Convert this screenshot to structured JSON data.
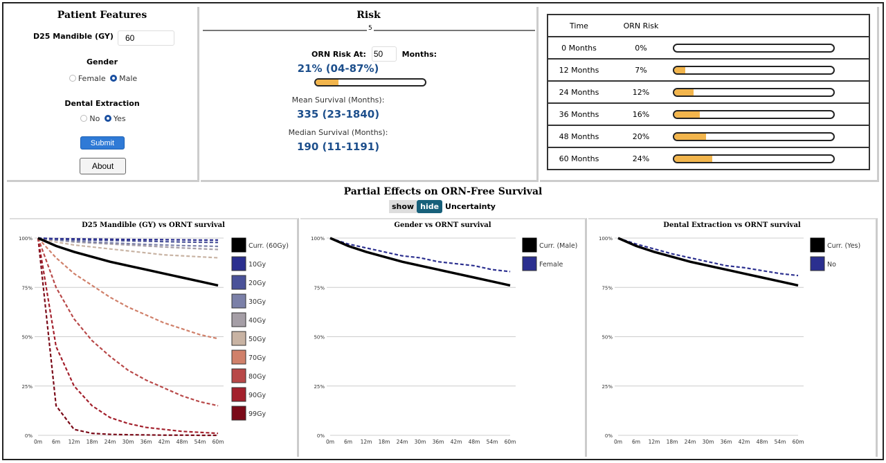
{
  "features": {
    "title": "Patient Features",
    "d25_label": "D25 Mandible (GY)",
    "d25_value": "60",
    "gender_label": "Gender",
    "gender_options": [
      "Female",
      "Male"
    ],
    "gender_selected": "Male",
    "extraction_label": "Dental Extraction",
    "extraction_options": [
      "No",
      "Yes"
    ],
    "extraction_selected": "Yes",
    "submit": "Submit",
    "about": "About"
  },
  "risk": {
    "title": "Risk",
    "slider_value": "5",
    "orn_at_label": "ORN Risk At:",
    "orn_at_value": "50",
    "months_label": "Months:",
    "risk_value": "21% (04-87%)",
    "risk_fraction": 0.21,
    "mean_label": "Mean Survival (Months):",
    "mean_value": "335 (23-1840)",
    "median_label": "Median Survival (Months):",
    "median_value": "190 (11-1191)"
  },
  "risk_table": {
    "headers": [
      "Time",
      "ORN Risk"
    ],
    "rows": [
      {
        "time": "0 Months",
        "risk": "0%",
        "fraction": 0
      },
      {
        "time": "12 Months",
        "risk": "7%",
        "fraction": 0.07
      },
      {
        "time": "24 Months",
        "risk": "12%",
        "fraction": 0.12
      },
      {
        "time": "36 Months",
        "risk": "16%",
        "fraction": 0.16
      },
      {
        "time": "48 Months",
        "risk": "20%",
        "fraction": 0.2
      },
      {
        "time": "60 Months",
        "risk": "24%",
        "fraction": 0.24
      }
    ]
  },
  "partial": {
    "title": "Partial Effects on ORN-Free Survival",
    "show": "show",
    "hide": "hide",
    "active": "hide",
    "uncertainty": "Uncertainty"
  },
  "chart_data": [
    {
      "type": "line",
      "title": "D25 Mandible (GY) vs ORNT survival",
      "x": [
        "0m",
        "6m",
        "12m",
        "18m",
        "24m",
        "30m",
        "36m",
        "42m",
        "48m",
        "54m",
        "60m"
      ],
      "yticks": [
        "0%",
        "25%",
        "50%",
        "75%",
        "100%"
      ],
      "ylim": [
        0,
        100
      ],
      "grid": true,
      "legend": "right",
      "series": [
        {
          "name": "Curr. (60Gy)",
          "color": "#000000",
          "dashed": false,
          "values": [
            100,
            96,
            93,
            90.5,
            88,
            86,
            84,
            82,
            80,
            78,
            76
          ]
        },
        {
          "name": "10Gy",
          "color": "#2b2f8f",
          "dashed": true,
          "values": [
            100,
            99.7,
            99.6,
            99.5,
            99.4,
            99.3,
            99.2,
            99.2,
            99.1,
            99,
            99
          ]
        },
        {
          "name": "20Gy",
          "color": "#4a5299",
          "dashed": true,
          "values": [
            100,
            99.5,
            99.2,
            99,
            98.8,
            98.6,
            98.4,
            98.2,
            98,
            97.9,
            97.8
          ]
        },
        {
          "name": "30Gy",
          "color": "#7b80a8",
          "dashed": true,
          "values": [
            100,
            99,
            98.5,
            98,
            97.6,
            97.2,
            96.8,
            96.5,
            96.2,
            96,
            95.8
          ]
        },
        {
          "name": "40Gy",
          "color": "#a59ea6",
          "dashed": true,
          "values": [
            100,
            99,
            98,
            97.5,
            97,
            96.5,
            96,
            95.5,
            95,
            94.6,
            94.2
          ]
        },
        {
          "name": "50Gy",
          "color": "#c8b3a3",
          "dashed": true,
          "values": [
            100,
            98,
            96.5,
            95.5,
            94.5,
            93.5,
            92.5,
            91.5,
            91,
            90.5,
            90
          ]
        },
        {
          "name": "70Gy",
          "color": "#d0806a",
          "dashed": true,
          "values": [
            100,
            90,
            82,
            76,
            70,
            65,
            61,
            57,
            54,
            51,
            49
          ]
        },
        {
          "name": "80Gy",
          "color": "#b84848",
          "dashed": true,
          "values": [
            100,
            75,
            59,
            48,
            40,
            33,
            28,
            24,
            20,
            17,
            15
          ]
        },
        {
          "name": "90Gy",
          "color": "#a3202c",
          "dashed": true,
          "values": [
            100,
            45,
            25,
            15,
            9,
            6,
            4,
            3,
            2,
            1.5,
            1
          ]
        },
        {
          "name": "99Gy",
          "color": "#7a0a18",
          "dashed": true,
          "values": [
            100,
            15,
            3,
            1,
            0.5,
            0.3,
            0.2,
            0.1,
            0.1,
            0,
            0
          ]
        }
      ]
    },
    {
      "type": "line",
      "title": "Gender vs ORNT survival",
      "x": [
        "0m",
        "6m",
        "12m",
        "18m",
        "24m",
        "30m",
        "36m",
        "42m",
        "48m",
        "54m",
        "60m"
      ],
      "yticks": [
        "0%",
        "25%",
        "50%",
        "75%",
        "100%"
      ],
      "ylim": [
        0,
        100
      ],
      "grid": true,
      "legend": "right",
      "series": [
        {
          "name": "Curr. (Male)",
          "color": "#000000",
          "dashed": false,
          "values": [
            100,
            96,
            93,
            90.5,
            88,
            86,
            84,
            82,
            80,
            78,
            76
          ]
        },
        {
          "name": "Female",
          "color": "#2b2f8f",
          "dashed": true,
          "values": [
            100,
            97,
            95,
            93,
            91,
            90,
            88,
            87,
            86,
            84,
            83
          ]
        }
      ]
    },
    {
      "type": "line",
      "title": "Dental Extraction vs ORNT survival",
      "x": [
        "0m",
        "6m",
        "12m",
        "18m",
        "24m",
        "30m",
        "36m",
        "42m",
        "48m",
        "54m",
        "60m"
      ],
      "yticks": [
        "0%",
        "25%",
        "50%",
        "75%",
        "100%"
      ],
      "ylim": [
        0,
        100
      ],
      "grid": true,
      "legend": "right",
      "series": [
        {
          "name": "Curr. (Yes)",
          "color": "#000000",
          "dashed": false,
          "values": [
            100,
            96,
            93,
            90.5,
            88,
            86,
            84,
            82,
            80,
            78,
            76
          ]
        },
        {
          "name": "No",
          "color": "#2b2f8f",
          "dashed": true,
          "values": [
            100,
            97,
            94.5,
            92,
            90,
            88,
            86,
            85,
            83.5,
            82,
            81
          ]
        }
      ]
    }
  ]
}
